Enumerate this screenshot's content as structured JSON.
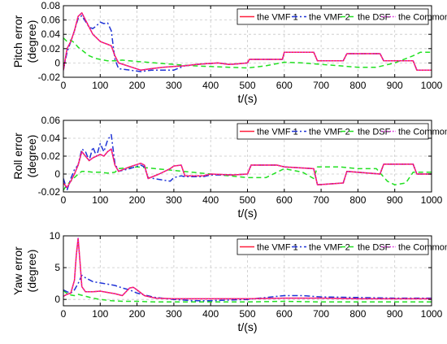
{
  "figure": {
    "legend_labels": [
      "the VMF 1",
      "the VMF 2",
      "the DSF",
      "the Common KF"
    ],
    "series_colors": [
      "#ff1f3d",
      "#1f33d6",
      "#22e022",
      "#d91fd9"
    ],
    "series_styles": [
      "solid",
      "dashdot",
      "dashed",
      "dotted"
    ]
  },
  "chart_data": [
    {
      "type": "line",
      "xlabel": "t/(s)",
      "ylabel_lines": [
        "Pitch error",
        "(degree)"
      ],
      "xlim": [
        0,
        1000
      ],
      "ylim": [
        -0.02,
        0.08
      ],
      "xticks": [
        0,
        100,
        200,
        300,
        400,
        500,
        600,
        700,
        800,
        900,
        1000
      ],
      "xtick_labels": [
        "0",
        "100",
        "200",
        "300",
        "400",
        "500",
        "600",
        "700",
        "800",
        "900",
        "1000"
      ],
      "yticks": [
        -0.02,
        0,
        0.02,
        0.04,
        0.06,
        0.08
      ],
      "ytick_labels": [
        "-0.02",
        "0",
        "0.02",
        "0.04",
        "0.06",
        "0.08"
      ],
      "grid": true,
      "legend_position": "top-right",
      "series": [
        {
          "name": "the VMF 1",
          "x": [
            0,
            10,
            20,
            30,
            40,
            50,
            60,
            70,
            80,
            90,
            100,
            110,
            120,
            130,
            140,
            150,
            180,
            210,
            240,
            270,
            300,
            330,
            360,
            390,
            420,
            450,
            480,
            500,
            505,
            540,
            580,
            595,
            600,
            660,
            680,
            690,
            740,
            760,
            770,
            840,
            860,
            870,
            950,
            960,
            1000
          ],
          "y": [
            -0.01,
            0.02,
            0.03,
            0.045,
            0.065,
            0.07,
            0.06,
            0.05,
            0.04,
            0.035,
            0.03,
            0.028,
            0.026,
            0.024,
            0.01,
            0.0,
            -0.005,
            -0.01,
            -0.008,
            -0.006,
            -0.005,
            -0.004,
            -0.002,
            -0.001,
            0.0,
            -0.002,
            -0.001,
            0.0,
            0.005,
            0.005,
            0.005,
            0.005,
            0.015,
            0.015,
            0.015,
            0.003,
            0.003,
            0.003,
            0.013,
            0.013,
            0.013,
            0.003,
            0.003,
            -0.01,
            -0.01
          ]
        },
        {
          "name": "the VMF 2",
          "x": [
            0,
            10,
            20,
            30,
            40,
            50,
            60,
            70,
            80,
            90,
            100,
            110,
            120,
            130,
            140,
            150,
            180,
            210,
            240,
            270,
            300,
            330,
            360,
            390,
            420,
            450,
            480,
            500,
            505,
            540,
            580,
            595,
            600,
            660,
            680,
            690,
            740,
            760,
            770,
            840,
            860,
            870,
            950,
            960,
            1000
          ],
          "y": [
            -0.01,
            0.015,
            0.03,
            0.045,
            0.062,
            0.066,
            0.058,
            0.05,
            0.048,
            0.052,
            0.057,
            0.055,
            0.056,
            0.045,
            0.005,
            -0.008,
            -0.01,
            -0.012,
            -0.01,
            -0.01,
            -0.01,
            -0.004,
            -0.002,
            -0.001,
            0.0,
            -0.002,
            -0.001,
            0.0,
            0.005,
            0.005,
            0.005,
            0.005,
            0.015,
            0.015,
            0.015,
            0.003,
            0.003,
            0.003,
            0.013,
            0.013,
            0.013,
            0.003,
            0.003,
            -0.01,
            -0.01
          ]
        },
        {
          "name": "the DSF",
          "x": [
            0,
            10,
            20,
            30,
            40,
            50,
            60,
            70,
            80,
            90,
            100,
            110,
            120,
            130,
            140,
            160,
            200,
            250,
            300,
            350,
            400,
            450,
            500,
            550,
            600,
            650,
            700,
            750,
            800,
            850,
            900,
            950,
            970,
            1000
          ],
          "y": [
            0.035,
            0.03,
            0.032,
            0.028,
            0.022,
            0.018,
            0.014,
            0.01,
            0.008,
            0.006,
            0.005,
            0.004,
            0.003,
            0.003,
            0.003,
            0.004,
            0.002,
            0.0,
            -0.002,
            -0.004,
            -0.005,
            -0.006,
            -0.007,
            -0.004,
            0.001,
            0.0,
            -0.002,
            -0.004,
            -0.006,
            -0.006,
            0.0,
            0.01,
            0.015,
            0.015
          ]
        },
        {
          "name": "the Common KF",
          "x": [
            0,
            10,
            20,
            30,
            40,
            50,
            60,
            70,
            80,
            90,
            100,
            110,
            120,
            130,
            140,
            150,
            180,
            210,
            240,
            270,
            300,
            330,
            360,
            390,
            420,
            450,
            480,
            500,
            505,
            540,
            580,
            595,
            600,
            660,
            680,
            690,
            740,
            760,
            770,
            840,
            860,
            870,
            950,
            960,
            1000
          ],
          "y": [
            -0.01,
            0.02,
            0.03,
            0.045,
            0.065,
            0.07,
            0.06,
            0.05,
            0.04,
            0.035,
            0.03,
            0.028,
            0.026,
            0.024,
            0.01,
            0.0,
            -0.005,
            -0.01,
            -0.008,
            -0.006,
            -0.005,
            -0.004,
            -0.002,
            -0.001,
            0.0,
            -0.002,
            -0.001,
            0.0,
            0.005,
            0.005,
            0.005,
            0.005,
            0.015,
            0.015,
            0.015,
            0.003,
            0.003,
            0.003,
            0.013,
            0.013,
            0.013,
            0.003,
            0.003,
            -0.01,
            -0.01
          ]
        }
      ]
    },
    {
      "type": "line",
      "xlabel": "t/(s)",
      "ylabel_lines": [
        "Roll error",
        "(degree)"
      ],
      "xlim": [
        0,
        1000
      ],
      "ylim": [
        -0.02,
        0.06
      ],
      "xticks": [
        0,
        100,
        200,
        300,
        400,
        500,
        600,
        700,
        800,
        900,
        1000
      ],
      "xtick_labels": [
        "0",
        "100",
        "200",
        "300",
        "400",
        "500",
        "600",
        "700",
        "800",
        "900",
        "1000"
      ],
      "yticks": [
        -0.02,
        0,
        0.02,
        0.04,
        0.06
      ],
      "ytick_labels": [
        "-0.02",
        "0",
        "0.02",
        "0.04",
        "0.06"
      ],
      "grid": true,
      "legend_position": "top-right",
      "series": [
        {
          "name": "the VMF 1",
          "x": [
            0,
            10,
            20,
            30,
            40,
            50,
            60,
            70,
            80,
            90,
            100,
            110,
            120,
            130,
            140,
            150,
            180,
            210,
            220,
            230,
            260,
            290,
            300,
            320,
            330,
            380,
            400,
            460,
            500,
            510,
            580,
            600,
            680,
            690,
            760,
            770,
            860,
            870,
            950,
            960,
            1000
          ],
          "y": [
            -0.01,
            -0.015,
            -0.008,
            0.0,
            0.01,
            0.025,
            0.02,
            0.015,
            0.018,
            0.02,
            0.022,
            0.02,
            0.025,
            0.028,
            0.01,
            0.003,
            0.008,
            0.012,
            0.01,
            -0.005,
            0.0,
            0.006,
            0.009,
            0.01,
            -0.002,
            -0.002,
            0.0,
            -0.001,
            0.0,
            0.01,
            0.01,
            0.008,
            0.006,
            -0.012,
            -0.01,
            0.003,
            0.0,
            0.011,
            0.011,
            0.0,
            0.0
          ]
        },
        {
          "name": "the VMF 2",
          "x": [
            0,
            10,
            20,
            30,
            40,
            50,
            60,
            70,
            80,
            90,
            100,
            110,
            120,
            130,
            140,
            150,
            180,
            210,
            220,
            230,
            260,
            290,
            300,
            320,
            330,
            380,
            400,
            460,
            500,
            510,
            580,
            600,
            680,
            690,
            760,
            770,
            860,
            870,
            950,
            960,
            1000
          ],
          "y": [
            -0.005,
            -0.018,
            -0.005,
            0.005,
            0.01,
            0.028,
            0.025,
            0.015,
            0.03,
            0.02,
            0.034,
            0.025,
            0.038,
            0.044,
            0.012,
            0.003,
            0.006,
            0.01,
            0.008,
            -0.004,
            -0.006,
            -0.008,
            -0.004,
            -0.002,
            -0.003,
            -0.003,
            -0.001,
            -0.001,
            0.0,
            0.01,
            0.01,
            0.008,
            0.006,
            -0.012,
            -0.01,
            0.003,
            0.0,
            0.011,
            0.011,
            0.0,
            0.0
          ]
        },
        {
          "name": "the DSF",
          "x": [
            0,
            10,
            20,
            30,
            40,
            50,
            60,
            80,
            100,
            120,
            140,
            150,
            200,
            250,
            300,
            350,
            400,
            450,
            500,
            550,
            600,
            650,
            680,
            690,
            750,
            800,
            850,
            880,
            900,
            930,
            950,
            1000
          ],
          "y": [
            -0.018,
            -0.012,
            -0.008,
            -0.004,
            0.0,
            0.003,
            0.003,
            0.002,
            0.002,
            0.001,
            0.002,
            0.006,
            0.008,
            0.006,
            0.004,
            0.002,
            0.0,
            -0.002,
            -0.004,
            -0.004,
            0.006,
            0.002,
            -0.005,
            0.008,
            0.008,
            0.006,
            0.006,
            -0.008,
            -0.012,
            -0.01,
            0.002,
            0.002
          ]
        },
        {
          "name": "the Common KF",
          "x": [
            0,
            10,
            20,
            30,
            40,
            50,
            60,
            70,
            80,
            90,
            100,
            110,
            120,
            130,
            140,
            150,
            180,
            210,
            220,
            230,
            260,
            290,
            300,
            320,
            330,
            380,
            400,
            460,
            500,
            510,
            580,
            600,
            680,
            690,
            760,
            770,
            860,
            870,
            950,
            960,
            1000
          ],
          "y": [
            -0.01,
            -0.015,
            -0.008,
            0.0,
            0.01,
            0.025,
            0.02,
            0.015,
            0.018,
            0.02,
            0.022,
            0.02,
            0.025,
            0.028,
            0.01,
            0.003,
            0.008,
            0.012,
            0.01,
            -0.005,
            0.0,
            0.006,
            0.009,
            0.01,
            -0.002,
            -0.002,
            0.0,
            -0.001,
            0.0,
            0.01,
            0.01,
            0.008,
            0.006,
            -0.012,
            -0.01,
            0.003,
            0.0,
            0.011,
            0.011,
            0.0,
            0.0
          ]
        }
      ]
    },
    {
      "type": "line",
      "xlabel": "t/(s)",
      "ylabel_lines": [
        "Yaw error",
        "(degree)"
      ],
      "xlim": [
        0,
        1000
      ],
      "ylim": [
        -1,
        10
      ],
      "xticks": [
        0,
        100,
        200,
        300,
        400,
        500,
        600,
        700,
        800,
        900,
        1000
      ],
      "xtick_labels": [
        "0",
        "100",
        "200",
        "300",
        "400",
        "500",
        "600",
        "700",
        "800",
        "900",
        "1000"
      ],
      "yticks": [
        0,
        5,
        10
      ],
      "ytick_labels": [
        "0",
        "5",
        "10"
      ],
      "grid": true,
      "legend_position": "top-right",
      "series": [
        {
          "name": "the VMF 1",
          "x": [
            0,
            10,
            20,
            30,
            35,
            40,
            45,
            50,
            60,
            80,
            100,
            120,
            140,
            160,
            180,
            190,
            200,
            220,
            250,
            300,
            400,
            500,
            600,
            700,
            800,
            900,
            1000
          ],
          "y": [
            0.5,
            0.8,
            1.0,
            3.0,
            7.0,
            9.6,
            6.0,
            2.0,
            1.2,
            1.2,
            1.3,
            1.1,
            0.9,
            0.6,
            1.8,
            1.9,
            1.5,
            0.6,
            0.2,
            0.1,
            0.1,
            0.1,
            0.2,
            0.2,
            0.1,
            0.1,
            0.1
          ]
        },
        {
          "name": "the VMF 2",
          "x": [
            0,
            10,
            20,
            30,
            40,
            50,
            60,
            80,
            100,
            120,
            140,
            160,
            180,
            200,
            220,
            250,
            300,
            350,
            400,
            500,
            550,
            600,
            650,
            700,
            800,
            900,
            1000
          ],
          "y": [
            1.5,
            1.2,
            1.0,
            1.5,
            2.5,
            3.8,
            3.4,
            2.8,
            2.6,
            2.4,
            2.2,
            1.8,
            1.5,
            1.0,
            0.7,
            0.3,
            0.0,
            -0.2,
            -0.2,
            0.0,
            0.3,
            0.6,
            0.6,
            0.4,
            0.3,
            0.2,
            0.2
          ]
        },
        {
          "name": "the DSF",
          "x": [
            0,
            10,
            20,
            30,
            40,
            60,
            80,
            100,
            130,
            160,
            200,
            250,
            300,
            400,
            500,
            600,
            700,
            800,
            900,
            1000
          ],
          "y": [
            1.4,
            0.9,
            0.7,
            0.6,
            0.8,
            0.5,
            0.2,
            0.0,
            -0.2,
            -0.3,
            -0.3,
            -0.4,
            -0.4,
            -0.4,
            -0.4,
            -0.3,
            -0.4,
            -0.4,
            -0.4,
            -0.4
          ]
        },
        {
          "name": "the Common KF",
          "x": [
            0,
            10,
            20,
            30,
            35,
            40,
            45,
            50,
            60,
            80,
            100,
            120,
            140,
            160,
            180,
            190,
            200,
            220,
            250,
            300,
            400,
            500,
            600,
            700,
            800,
            900,
            1000
          ],
          "y": [
            0.5,
            0.8,
            1.0,
            3.0,
            7.0,
            9.6,
            6.0,
            2.0,
            1.2,
            1.2,
            1.3,
            1.1,
            0.9,
            0.6,
            1.8,
            1.9,
            1.5,
            0.6,
            0.2,
            0.1,
            0.1,
            0.1,
            0.2,
            0.2,
            0.1,
            0.1,
            0.1
          ]
        }
      ]
    }
  ]
}
